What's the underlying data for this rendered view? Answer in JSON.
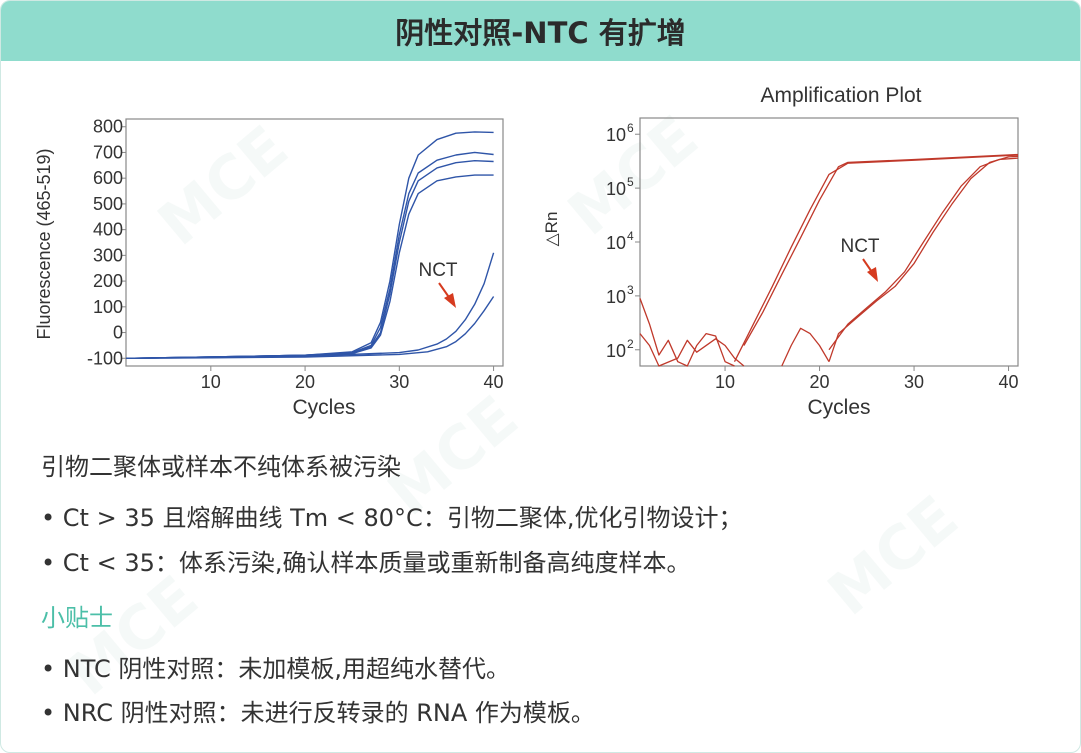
{
  "header": {
    "title": "阴性对照-NTC 有扩增"
  },
  "left_chart": {
    "ylabel": "Fluorescence (465-519)",
    "xlabel": "Cycles",
    "yticks": [
      "800",
      "700",
      "600",
      "500",
      "400",
      "300",
      "200",
      "100",
      "0",
      "-100"
    ],
    "xticks": [
      "10",
      "20",
      "30",
      "40"
    ],
    "annotation": "NCT",
    "colors": {
      "line": "#2f55a8",
      "arrow": "#d63b1f"
    }
  },
  "right_chart": {
    "title": "Amplification Plot",
    "ylabel": "△Rn",
    "xlabel": "Cycles",
    "ytick_bases": [
      "10",
      "10",
      "10",
      "10",
      "10"
    ],
    "ytick_exps": [
      "6",
      "5",
      "4",
      "3",
      "2"
    ],
    "xticks": [
      "10",
      "20",
      "30",
      "40"
    ],
    "annotation": "NCT",
    "colors": {
      "line": "#c0392b",
      "arrow": "#d63b1f"
    }
  },
  "chart_data": [
    {
      "type": "line",
      "xlabel": "Cycles",
      "ylabel": "Fluorescence (465-519)",
      "xlim": [
        1,
        41
      ],
      "ylim": [
        -130,
        830
      ],
      "annotation": "NCT",
      "series": [
        {
          "values": [
            [
              1,
              -100
            ],
            [
              10,
              -95
            ],
            [
              20,
              -88
            ],
            [
              25,
              -75
            ],
            [
              27,
              -40
            ],
            [
              28,
              40
            ],
            [
              29,
              200
            ],
            [
              30,
              420
            ],
            [
              31,
              600
            ],
            [
              32,
              690
            ],
            [
              34,
              750
            ],
            [
              36,
              775
            ],
            [
              38,
              780
            ],
            [
              40,
              778
            ]
          ]
        },
        {
          "values": [
            [
              1,
              -100
            ],
            [
              10,
              -95
            ],
            [
              20,
              -88
            ],
            [
              25,
              -78
            ],
            [
              27,
              -50
            ],
            [
              28,
              20
            ],
            [
              29,
              170
            ],
            [
              30,
              380
            ],
            [
              31,
              540
            ],
            [
              32,
              620
            ],
            [
              34,
              670
            ],
            [
              36,
              690
            ],
            [
              38,
              700
            ],
            [
              40,
              692
            ]
          ]
        },
        {
          "values": [
            [
              1,
              -100
            ],
            [
              10,
              -95
            ],
            [
              20,
              -88
            ],
            [
              25,
              -80
            ],
            [
              27,
              -55
            ],
            [
              28,
              0
            ],
            [
              29,
              150
            ],
            [
              30,
              350
            ],
            [
              31,
              510
            ],
            [
              32,
              590
            ],
            [
              34,
              640
            ],
            [
              36,
              660
            ],
            [
              38,
              668
            ],
            [
              40,
              665
            ]
          ]
        },
        {
          "values": [
            [
              1,
              -100
            ],
            [
              10,
              -95
            ],
            [
              20,
              -88
            ],
            [
              25,
              -82
            ],
            [
              27,
              -60
            ],
            [
              28,
              -10
            ],
            [
              29,
              120
            ],
            [
              30,
              310
            ],
            [
              31,
              460
            ],
            [
              32,
              540
            ],
            [
              34,
              590
            ],
            [
              36,
              605
            ],
            [
              38,
              612
            ],
            [
              40,
              612
            ]
          ]
        },
        {
          "values": [
            [
              1,
              -100
            ],
            [
              10,
              -97
            ],
            [
              20,
              -92
            ],
            [
              30,
              -78
            ],
            [
              32,
              -68
            ],
            [
              34,
              -45
            ],
            [
              35,
              -25
            ],
            [
              36,
              5
            ],
            [
              37,
              50
            ],
            [
              38,
              110
            ],
            [
              39,
              190
            ],
            [
              40,
              310
            ]
          ]
        },
        {
          "values": [
            [
              1,
              -100
            ],
            [
              10,
              -98
            ],
            [
              20,
              -95
            ],
            [
              30,
              -85
            ],
            [
              33,
              -75
            ],
            [
              35,
              -55
            ],
            [
              36,
              -35
            ],
            [
              37,
              -5
            ],
            [
              38,
              35
            ],
            [
              39,
              85
            ],
            [
              40,
              140
            ]
          ]
        }
      ]
    },
    {
      "type": "line",
      "title": "Amplification Plot",
      "xlabel": "Cycles",
      "ylabel": "△Rn",
      "yscale": "log",
      "xlim": [
        1,
        41
      ],
      "ylim": [
        50,
        2000000
      ],
      "annotation": "NCT",
      "series": [
        {
          "values": [
            [
              12,
              120
            ],
            [
              14,
              500
            ],
            [
              16,
              2500
            ],
            [
              18,
              12000
            ],
            [
              20,
              60000
            ],
            [
              22,
              250000
            ],
            [
              23,
              300000
            ],
            [
              30,
              340000
            ],
            [
              41,
              420000
            ]
          ]
        },
        {
          "values": [
            [
              11,
              60
            ],
            [
              13,
              300
            ],
            [
              15,
              1500
            ],
            [
              17,
              8000
            ],
            [
              19,
              40000
            ],
            [
              21,
              180000
            ],
            [
              23,
              290000
            ],
            [
              30,
              330000
            ],
            [
              41,
              410000
            ]
          ]
        },
        {
          "values": [
            [
              21,
              60
            ],
            [
              22,
              200
            ],
            [
              24,
              400
            ],
            [
              26,
              800
            ],
            [
              28,
              1500
            ],
            [
              30,
              4000
            ],
            [
              32,
              15000
            ],
            [
              34,
              50000
            ],
            [
              36,
              150000
            ],
            [
              38,
              300000
            ],
            [
              40,
              380000
            ],
            [
              41,
              390000
            ]
          ]
        },
        {
          "values": [
            [
              21,
              100
            ],
            [
              23,
              300
            ],
            [
              25,
              600
            ],
            [
              27,
              1200
            ],
            [
              29,
              2800
            ],
            [
              31,
              10000
            ],
            [
              33,
              35000
            ],
            [
              35,
              110000
            ],
            [
              37,
              250000
            ],
            [
              39,
              340000
            ],
            [
              41,
              360000
            ]
          ]
        },
        {
          "values": [
            [
              1,
              900
            ],
            [
              2,
              300
            ],
            [
              3,
              80
            ],
            [
              4,
              150
            ],
            [
              5,
              60
            ],
            [
              6,
              50
            ],
            [
              7,
              120
            ],
            [
              8,
              200
            ],
            [
              9,
              180
            ],
            [
              10,
              60
            ],
            [
              11,
              50
            ]
          ]
        },
        {
          "values": [
            [
              1,
              200
            ],
            [
              2,
              120
            ],
            [
              3,
              50
            ],
            [
              5,
              70
            ],
            [
              6,
              150
            ],
            [
              7,
              90
            ],
            [
              9,
              160
            ],
            [
              10,
              120
            ],
            [
              11,
              70
            ],
            [
              12,
              50
            ]
          ]
        },
        {
          "values": [
            [
              16,
              50
            ],
            [
              17,
              120
            ],
            [
              18,
              250
            ],
            [
              19,
              200
            ],
            [
              20,
              120
            ],
            [
              21,
              60
            ]
          ]
        }
      ]
    }
  ],
  "notes": {
    "title": "引物二聚体或样本不纯体系被污染",
    "bullets": [
      "• Ct > 35 且熔解曲线 Tm < 80°C：引物二聚体,优化引物设计；",
      "• Ct < 35：体系污染,确认样本质量或重新制备高纯度样本。"
    ]
  },
  "tips": {
    "title": "小贴士",
    "bullets": [
      "• NTC 阴性对照：未加模板,用超纯水替代。",
      "• NRC 阴性对照：未进行反转录的 RNA 作为模板。"
    ]
  }
}
